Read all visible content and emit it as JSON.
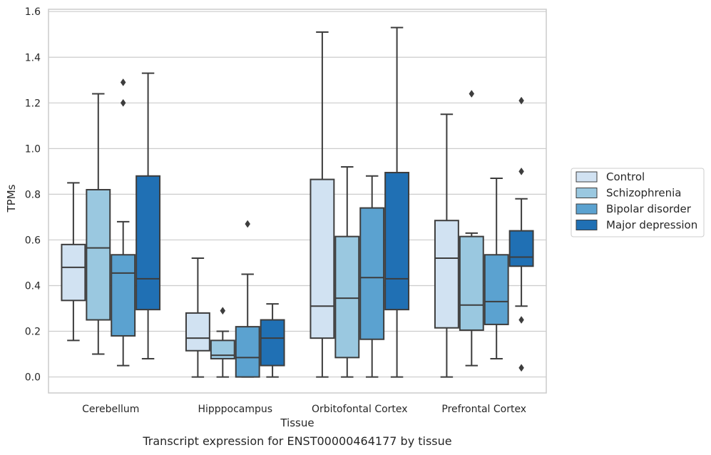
{
  "chart_data": {
    "type": "boxplot",
    "title": "",
    "caption": "Transcript expression for ENST00000464177 by tissue",
    "xlabel": "Tissue",
    "ylabel": "TPMs",
    "ylim": [
      -0.07,
      1.61
    ],
    "yticks": [
      "0.0",
      "0.2",
      "0.4",
      "0.6",
      "0.8",
      "1.0",
      "1.2",
      "1.4",
      "1.6"
    ],
    "grid": "horizontal",
    "legend_position": "right",
    "categories": [
      "Cerebellum",
      "Hipppocampus",
      "Orbitofontal Cortex",
      "Prefrontal Cortex"
    ],
    "series": [
      {
        "name": "Control",
        "color": "#d1e2f2",
        "boxes": [
          {
            "whislo": 0.16,
            "q1": 0.335,
            "med": 0.48,
            "q3": 0.58,
            "whishi": 0.85,
            "fliers": []
          },
          {
            "whislo": 0.0,
            "q1": 0.115,
            "med": 0.17,
            "q3": 0.28,
            "whishi": 0.52,
            "fliers": []
          },
          {
            "whislo": 0.0,
            "q1": 0.17,
            "med": 0.31,
            "q3": 0.865,
            "whishi": 1.51,
            "fliers": []
          },
          {
            "whislo": 0.0,
            "q1": 0.215,
            "med": 0.52,
            "q3": 0.685,
            "whishi": 1.15,
            "fliers": []
          }
        ]
      },
      {
        "name": "Schizophrenia",
        "color": "#9ac8e0",
        "boxes": [
          {
            "whislo": 0.1,
            "q1": 0.25,
            "med": 0.565,
            "q3": 0.82,
            "whishi": 1.24,
            "fliers": []
          },
          {
            "whislo": 0.0,
            "q1": 0.08,
            "med": 0.095,
            "q3": 0.16,
            "whishi": 0.2,
            "fliers": [
              0.29
            ]
          },
          {
            "whislo": 0.0,
            "q1": 0.085,
            "med": 0.345,
            "q3": 0.615,
            "whishi": 0.92,
            "fliers": []
          },
          {
            "whislo": 0.05,
            "q1": 0.205,
            "med": 0.315,
            "q3": 0.615,
            "whishi": 0.63,
            "fliers": [
              1.24
            ]
          }
        ]
      },
      {
        "name": "Bipolar disorder",
        "color": "#5ba2d0",
        "boxes": [
          {
            "whislo": 0.05,
            "q1": 0.18,
            "med": 0.455,
            "q3": 0.535,
            "whishi": 0.68,
            "fliers": [
              1.2,
              1.29
            ]
          },
          {
            "whislo": 0.0,
            "q1": 0.0,
            "med": 0.085,
            "q3": 0.22,
            "whishi": 0.45,
            "fliers": [
              0.67
            ]
          },
          {
            "whislo": 0.0,
            "q1": 0.165,
            "med": 0.435,
            "q3": 0.74,
            "whishi": 0.88,
            "fliers": []
          },
          {
            "whislo": 0.08,
            "q1": 0.23,
            "med": 0.33,
            "q3": 0.535,
            "whishi": 0.87,
            "fliers": []
          }
        ]
      },
      {
        "name": "Major depression",
        "color": "#2070b4",
        "boxes": [
          {
            "whislo": 0.08,
            "q1": 0.295,
            "med": 0.43,
            "q3": 0.88,
            "whishi": 1.33,
            "fliers": []
          },
          {
            "whislo": 0.0,
            "q1": 0.05,
            "med": 0.17,
            "q3": 0.25,
            "whishi": 0.32,
            "fliers": []
          },
          {
            "whislo": 0.0,
            "q1": 0.295,
            "med": 0.43,
            "q3": 0.895,
            "whishi": 1.53,
            "fliers": []
          },
          {
            "whislo": 0.31,
            "q1": 0.485,
            "med": 0.525,
            "q3": 0.64,
            "whishi": 0.78,
            "fliers": [
              0.04,
              0.25,
              0.9,
              1.21
            ]
          }
        ]
      }
    ]
  }
}
